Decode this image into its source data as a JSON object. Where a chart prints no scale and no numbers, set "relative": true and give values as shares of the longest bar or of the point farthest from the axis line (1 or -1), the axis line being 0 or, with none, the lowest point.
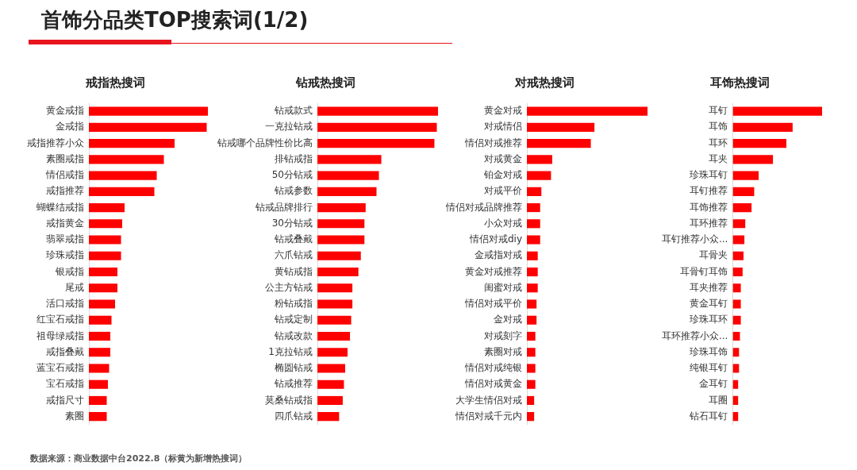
{
  "chart_data": [
    {
      "type": "other",
      "title": "首饰分品类TOP搜索词(1/2)",
      "annotations": [
        "数据来源：商业数据中台2022.8（标黄为新增热搜词）"
      ]
    },
    {
      "type": "bar",
      "orientation": "horizontal",
      "relative": true,
      "title": "戒指热搜词",
      "color": "#ff0000",
      "categories": [
        "黄金戒指",
        "金戒指",
        "戒指推荐小众",
        "素圈戒指",
        "情侣戒指",
        "戒指推荐",
        "蝴蝶结戒指",
        "戒指黄金",
        "翡翠戒指",
        "珍珠戒指",
        "银戒指",
        "尾戒",
        "活口戒指",
        "红宝石戒指",
        "祖母绿戒指",
        "戒指叠戴",
        "蓝宝石戒指",
        "宝石戒指",
        "戒指尺寸",
        "素圈"
      ],
      "values": [
        1,
        0.99,
        0.72,
        0.63,
        0.57,
        0.55,
        0.3,
        0.28,
        0.27,
        0.27,
        0.24,
        0.24,
        0.22,
        0.19,
        0.18,
        0.18,
        0.17,
        0.16,
        0.15,
        0.15
      ]
    },
    {
      "type": "bar",
      "orientation": "horizontal",
      "relative": true,
      "title": "钻戒热搜词",
      "color": "#ff0000",
      "categories": [
        "钻戒款式",
        "一克拉钻戒",
        "钻戒哪个品牌性价比高",
        "排钻戒指",
        "50分钻戒",
        "钻戒参数",
        "钻戒品牌排行",
        "30分钻戒",
        "钻戒叠戴",
        "六爪钻戒",
        "黄钻戒指",
        "公主方钻戒",
        "粉钻戒指",
        "钻戒定制",
        "钻戒改款",
        "1克拉钻戒",
        "椭圆钻戒",
        "钻戒推荐",
        "莫桑钻戒指",
        "四爪钻戒"
      ],
      "values": [
        1,
        0.99,
        0.97,
        0.53,
        0.51,
        0.49,
        0.4,
        0.39,
        0.39,
        0.36,
        0.34,
        0.29,
        0.29,
        0.28,
        0.27,
        0.25,
        0.23,
        0.22,
        0.21,
        0.18
      ]
    },
    {
      "type": "bar",
      "orientation": "horizontal",
      "relative": true,
      "title": "对戒热搜词",
      "color": "#ff0000",
      "categories": [
        "黄金对戒",
        "对戒情侣",
        "情侣对戒推荐",
        "对戒黄金",
        "铂金对戒",
        "对戒平价",
        "情侣对戒品牌推荐",
        "小众对戒",
        "情侣对戒diy",
        "金戒指对戒",
        "黄金对戒推荐",
        "闺蜜对戒",
        "情侣对戒平价",
        "金对戒",
        "对戒刻字",
        "素圈对戒",
        "情侣对戒纯银",
        "情侣对戒黄金",
        "大学生情侣对戒",
        "情侣对戒千元内"
      ],
      "values": [
        1,
        0.56,
        0.53,
        0.21,
        0.2,
        0.12,
        0.11,
        0.11,
        0.11,
        0.09,
        0.09,
        0.09,
        0.08,
        0.08,
        0.07,
        0.07,
        0.07,
        0.07,
        0.06,
        0.06
      ]
    },
    {
      "type": "bar",
      "orientation": "horizontal",
      "relative": true,
      "title": "耳饰热搜词",
      "color": "#ff0000",
      "categories": [
        "耳钉",
        "耳饰",
        "耳环",
        "耳夹",
        "珍珠耳钉",
        "耳钉推荐",
        "耳饰推荐",
        "耳环推荐",
        "耳钉推荐小众...",
        "耳骨夹",
        "耳骨钉耳饰",
        "耳夹推荐",
        "黄金耳钉",
        "珍珠耳环",
        "耳环推荐小众...",
        "珍珠耳饰",
        "纯银耳钉",
        "金耳钉",
        "耳圈",
        "钻石耳钉"
      ],
      "values": [
        1,
        0.67,
        0.6,
        0.45,
        0.29,
        0.24,
        0.21,
        0.14,
        0.13,
        0.12,
        0.11,
        0.09,
        0.09,
        0.09,
        0.08,
        0.07,
        0.07,
        0.06,
        0.06,
        0.06
      ]
    }
  ]
}
